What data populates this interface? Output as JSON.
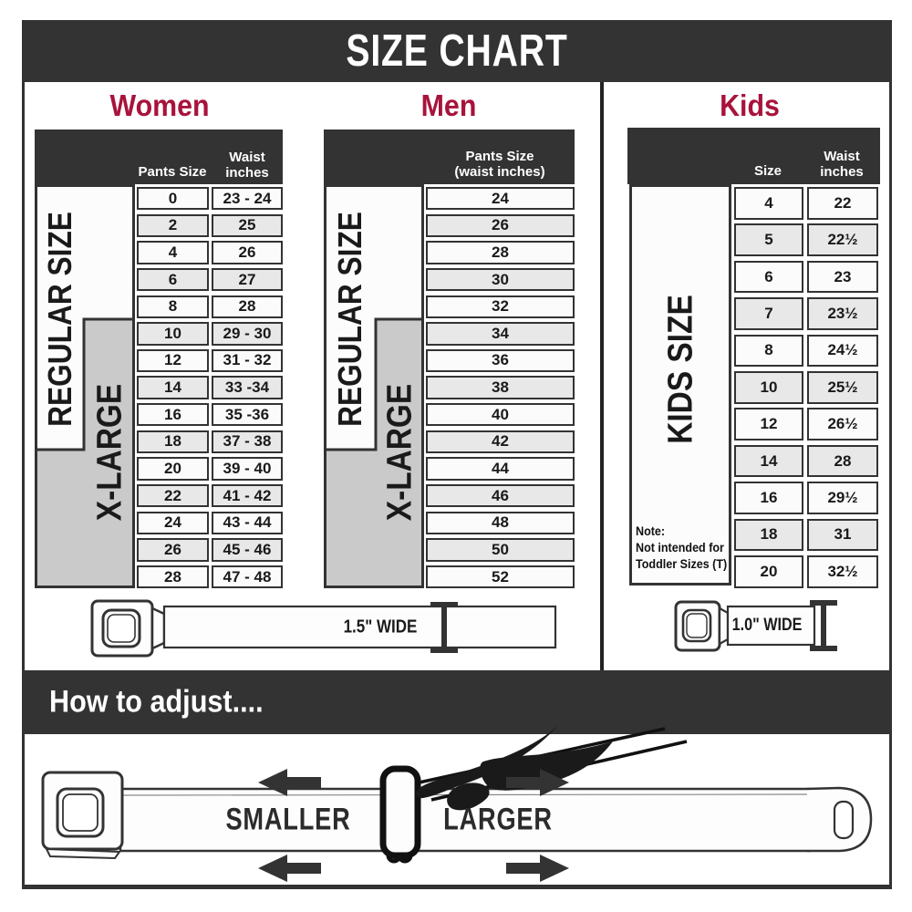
{
  "banner": {
    "title": "SIZE CHART"
  },
  "colors": {
    "accent": "#A8133B",
    "dark": "#333333",
    "row_light": "#FBFBFB",
    "row_shaded": "#E8E8E8",
    "xlarge_gray": "#CACACA"
  },
  "sections": {
    "women": {
      "title": "Women",
      "col1_header": "Pants Size",
      "col2_header_line1": "Waist",
      "col2_header_line2": "inches",
      "regular_label": "REGULAR SIZE",
      "xlarge_label": "X-LARGE",
      "rows": [
        {
          "size": "0",
          "waist": "23 - 24"
        },
        {
          "size": "2",
          "waist": "25"
        },
        {
          "size": "4",
          "waist": "26"
        },
        {
          "size": "6",
          "waist": "27"
        },
        {
          "size": "8",
          "waist": "28"
        },
        {
          "size": "10",
          "waist": "29 - 30"
        },
        {
          "size": "12",
          "waist": "31 - 32"
        },
        {
          "size": "14",
          "waist": "33 -34"
        },
        {
          "size": "16",
          "waist": "35 -36"
        },
        {
          "size": "18",
          "waist": "37 - 38"
        },
        {
          "size": "20",
          "waist": "39 - 40"
        },
        {
          "size": "22",
          "waist": "41 - 42"
        },
        {
          "size": "24",
          "waist": "43 - 44"
        },
        {
          "size": "26",
          "waist": "45 - 46"
        },
        {
          "size": "28",
          "waist": "47 - 48"
        }
      ]
    },
    "men": {
      "title": "Men",
      "header_line1": "Pants Size",
      "header_line2": "(waist inches)",
      "regular_label": "REGULAR SIZE",
      "xlarge_label": "X-LARGE",
      "rows": [
        "24",
        "26",
        "28",
        "30",
        "32",
        "34",
        "36",
        "38",
        "40",
        "42",
        "44",
        "46",
        "48",
        "50",
        "52"
      ]
    },
    "kids": {
      "title": "Kids",
      "col1_header": "Size",
      "col2_header_line1": "Waist",
      "col2_header_line2": "inches",
      "side_label": "KIDS SIZE",
      "note_line1": "Note:",
      "note_line2": "Not intended for",
      "note_line3": "Toddler Sizes (T)",
      "rows": [
        {
          "size": "4",
          "waist": "22"
        },
        {
          "size": "5",
          "waist": "22½"
        },
        {
          "size": "6",
          "waist": "23"
        },
        {
          "size": "7",
          "waist": "23½"
        },
        {
          "size": "8",
          "waist": "24½"
        },
        {
          "size": "10",
          "waist": "25½"
        },
        {
          "size": "12",
          "waist": "26½"
        },
        {
          "size": "14",
          "waist": "28"
        },
        {
          "size": "16",
          "waist": "29½"
        },
        {
          "size": "18",
          "waist": "31"
        },
        {
          "size": "20",
          "waist": "32½"
        }
      ]
    }
  },
  "belts": {
    "adult_width_label": "1.5\" WIDE",
    "kids_width_label": "1.0\" WIDE"
  },
  "adjust": {
    "heading": "How to adjust....",
    "smaller_label": "SMALLER",
    "larger_label": "LARGER"
  }
}
